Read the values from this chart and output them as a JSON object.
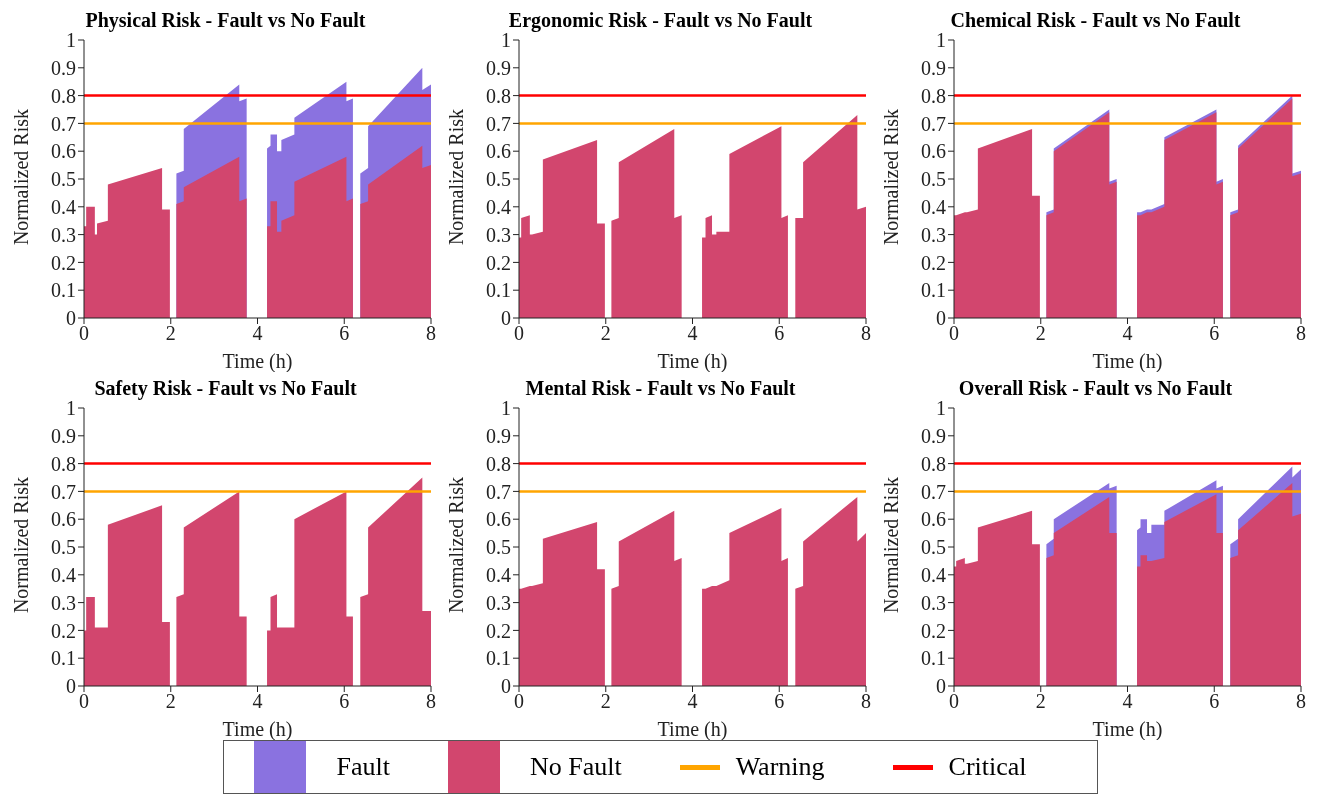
{
  "chart_data": [
    {
      "type": "area",
      "title": "Physical Risk - Fault vs No Fault",
      "xlabel": "Time (h)",
      "ylabel": "Normalized Risk",
      "xlim": [
        0,
        8
      ],
      "xticks": [
        0,
        2,
        4,
        6,
        8
      ],
      "ylim": [
        0,
        1
      ],
      "yticks": [
        0,
        0.1,
        0.2,
        0.3,
        0.4,
        0.5,
        0.6,
        0.7,
        0.8,
        0.9,
        1
      ],
      "legend": "bottom",
      "x": [
        0,
        0.05,
        0.05,
        0.25,
        0.25,
        0.3,
        0.3,
        0.55,
        0.55,
        1.8,
        1.8,
        1.98,
        1.98,
        2.13,
        2.13,
        2.3,
        2.3,
        3.58,
        3.58,
        3.75,
        3.75,
        4.22,
        4.22,
        4.3,
        4.3,
        4.45,
        4.45,
        4.55,
        4.55,
        4.85,
        4.85,
        6.05,
        6.05,
        6.2,
        6.2,
        6.37,
        6.37,
        6.55,
        6.55,
        7.8,
        7.8,
        8
      ],
      "series": [
        {
          "name": "Fault",
          "color": "#8a72e0",
          "values": [
            null,
            null,
            null,
            null,
            null,
            null,
            null,
            null,
            null,
            null,
            null,
            null,
            null,
            null,
            0.52,
            0.53,
            0.68,
            0.84,
            0.78,
            0.79,
            null,
            null,
            0.61,
            0.62,
            0.66,
            0.66,
            0.6,
            0.6,
            0.64,
            0.66,
            0.72,
            0.85,
            0.78,
            0.79,
            null,
            null,
            0.52,
            0.54,
            0.69,
            0.9,
            0.82,
            0.84
          ]
        },
        {
          "name": "No Fault",
          "color": "#d2466e",
          "values": [
            0.33,
            0.33,
            0.4,
            0.4,
            0.3,
            0.3,
            0.34,
            0.35,
            0.48,
            0.54,
            0.39,
            0.39,
            0,
            0,
            0.41,
            0.42,
            0.47,
            0.58,
            0.42,
            0.43,
            0,
            0,
            0.33,
            0.33,
            0.42,
            0.42,
            0.31,
            0.31,
            0.35,
            0.37,
            0.49,
            0.58,
            0.42,
            0.43,
            0,
            0,
            0.41,
            0.42,
            0.48,
            0.62,
            0.54,
            0.55
          ]
        }
      ],
      "ref_lines": [
        {
          "axis": "y",
          "value": 0.7,
          "label": "Warning",
          "color": "#ffa500"
        },
        {
          "axis": "y",
          "value": 0.8,
          "label": "Critical",
          "color": "#ff0000"
        }
      ]
    },
    {
      "type": "area",
      "title": "Ergonomic Risk - Fault vs No Fault",
      "xlabel": "Time (h)",
      "ylabel": "Normalized Risk",
      "xlim": [
        0,
        8
      ],
      "xticks": [
        0,
        2,
        4,
        6,
        8
      ],
      "ylim": [
        0,
        1
      ],
      "yticks": [
        0,
        0.1,
        0.2,
        0.3,
        0.4,
        0.5,
        0.6,
        0.7,
        0.8,
        0.9,
        1
      ],
      "x": [
        0,
        0.05,
        0.05,
        0.25,
        0.25,
        0.3,
        0.3,
        0.55,
        0.55,
        1.8,
        1.8,
        1.98,
        1.98,
        2.13,
        2.13,
        2.3,
        2.3,
        3.58,
        3.58,
        3.75,
        3.75,
        4.22,
        4.22,
        4.3,
        4.3,
        4.45,
        4.45,
        4.55,
        4.55,
        4.85,
        4.85,
        6.05,
        6.05,
        6.2,
        6.2,
        6.37,
        6.37,
        6.55,
        6.55,
        7.8,
        7.8,
        8
      ],
      "series": [
        {
          "color": "#d2466e",
          "values": [
            0.29,
            0.29,
            0.36,
            0.37,
            0.3,
            0.3,
            0.3,
            0.31,
            0.57,
            0.64,
            0.34,
            0.34,
            0,
            0,
            0.35,
            0.36,
            0.56,
            0.68,
            0.36,
            0.37,
            0,
            0,
            0.29,
            0.29,
            0.36,
            0.37,
            0.3,
            0.3,
            0.31,
            0.31,
            0.59,
            0.69,
            0.36,
            0.37,
            0,
            0,
            0.36,
            0.36,
            0.56,
            0.73,
            0.39,
            0.4
          ]
        }
      ],
      "ref_lines": [
        {
          "axis": "y",
          "value": 0.7,
          "color": "#ffa500"
        },
        {
          "axis": "y",
          "value": 0.8,
          "color": "#ff0000"
        }
      ]
    },
    {
      "type": "area",
      "title": "Chemical Risk - Fault vs No Fault",
      "xlabel": "Time (h)",
      "ylabel": "Normalized Risk",
      "xlim": [
        0,
        8
      ],
      "xticks": [
        0,
        2,
        4,
        6,
        8
      ],
      "ylim": [
        0,
        1
      ],
      "yticks": [
        0,
        0.1,
        0.2,
        0.3,
        0.4,
        0.5,
        0.6,
        0.7,
        0.8,
        0.9,
        1
      ],
      "x": [
        0,
        0.05,
        0.05,
        0.25,
        0.25,
        0.3,
        0.3,
        0.55,
        0.55,
        1.8,
        1.8,
        1.98,
        1.98,
        2.13,
        2.13,
        2.3,
        2.3,
        3.58,
        3.58,
        3.75,
        3.75,
        4.22,
        4.22,
        4.3,
        4.3,
        4.45,
        4.45,
        4.55,
        4.55,
        4.85,
        4.85,
        6.05,
        6.05,
        6.2,
        6.2,
        6.37,
        6.37,
        6.55,
        6.55,
        7.8,
        7.8,
        8
      ],
      "series": [
        {
          "color": "#8a72e0",
          "values": [
            null,
            null,
            null,
            null,
            null,
            null,
            null,
            null,
            null,
            null,
            null,
            null,
            null,
            null,
            0.38,
            0.39,
            0.61,
            0.75,
            0.49,
            0.5,
            null,
            null,
            0.38,
            0.38,
            0.38,
            0.39,
            0.39,
            0.39,
            0.39,
            0.41,
            0.65,
            0.75,
            0.49,
            0.5,
            null,
            null,
            0.38,
            0.39,
            0.62,
            0.8,
            0.52,
            0.53
          ]
        },
        {
          "color": "#d2466e",
          "values": [
            0.37,
            0.37,
            0.37,
            0.38,
            0.38,
            0.38,
            0.38,
            0.39,
            0.61,
            0.68,
            0.44,
            0.44,
            0,
            0,
            0.37,
            0.38,
            0.6,
            0.74,
            0.48,
            0.49,
            0,
            0,
            0.37,
            0.37,
            0.37,
            0.38,
            0.38,
            0.38,
            0.38,
            0.4,
            0.64,
            0.74,
            0.48,
            0.49,
            0,
            0,
            0.37,
            0.38,
            0.61,
            0.79,
            0.51,
            0.52
          ]
        }
      ],
      "ref_lines": [
        {
          "axis": "y",
          "value": 0.7,
          "color": "#ffa500"
        },
        {
          "axis": "y",
          "value": 0.8,
          "color": "#ff0000"
        }
      ]
    },
    {
      "type": "area",
      "title": "Safety Risk - Fault vs No Fault",
      "xlabel": "Time (h)",
      "ylabel": "Normalized Risk",
      "xlim": [
        0,
        8
      ],
      "xticks": [
        0,
        2,
        4,
        6,
        8
      ],
      "ylim": [
        0,
        1
      ],
      "yticks": [
        0,
        0.1,
        0.2,
        0.3,
        0.4,
        0.5,
        0.6,
        0.7,
        0.8,
        0.9,
        1
      ],
      "x": [
        0,
        0.05,
        0.05,
        0.25,
        0.25,
        0.3,
        0.3,
        0.55,
        0.55,
        1.8,
        1.8,
        1.98,
        1.98,
        2.13,
        2.13,
        2.3,
        2.3,
        3.58,
        3.58,
        3.75,
        3.75,
        4.22,
        4.22,
        4.3,
        4.3,
        4.45,
        4.45,
        4.55,
        4.55,
        4.85,
        4.85,
        6.05,
        6.05,
        6.2,
        6.2,
        6.37,
        6.37,
        6.55,
        6.55,
        7.8,
        7.8,
        8
      ],
      "series": [
        {
          "color": "#d2466e",
          "values": [
            0.2,
            0.2,
            0.32,
            0.32,
            0.21,
            0.21,
            0.21,
            0.21,
            0.58,
            0.65,
            0.23,
            0.23,
            0,
            0,
            0.32,
            0.33,
            0.57,
            0.7,
            0.25,
            0.25,
            0,
            0,
            0.2,
            0.2,
            0.32,
            0.33,
            0.21,
            0.21,
            0.21,
            0.21,
            0.6,
            0.7,
            0.25,
            0.25,
            0,
            0,
            0.32,
            0.33,
            0.57,
            0.75,
            0.27,
            0.27
          ]
        }
      ],
      "ref_lines": [
        {
          "axis": "y",
          "value": 0.7,
          "color": "#ffa500"
        },
        {
          "axis": "y",
          "value": 0.8,
          "color": "#ff0000"
        }
      ]
    },
    {
      "type": "area",
      "title": "Mental Risk - Fault vs No Fault",
      "xlabel": "Time (h)",
      "ylabel": "Normalized Risk",
      "xlim": [
        0,
        8
      ],
      "xticks": [
        0,
        2,
        4,
        6,
        8
      ],
      "ylim": [
        0,
        1
      ],
      "yticks": [
        0,
        0.1,
        0.2,
        0.3,
        0.4,
        0.5,
        0.6,
        0.7,
        0.8,
        0.9,
        1
      ],
      "x": [
        0,
        0.05,
        0.05,
        0.25,
        0.25,
        0.3,
        0.3,
        0.55,
        0.55,
        1.8,
        1.8,
        1.98,
        1.98,
        2.13,
        2.13,
        2.3,
        2.3,
        3.58,
        3.58,
        3.75,
        3.75,
        4.22,
        4.22,
        4.3,
        4.3,
        4.45,
        4.45,
        4.55,
        4.55,
        4.85,
        4.85,
        6.05,
        6.05,
        6.2,
        6.2,
        6.37,
        6.37,
        6.55,
        6.55,
        7.8,
        7.8,
        8
      ],
      "series": [
        {
          "color": "#d2466e",
          "values": [
            0.35,
            0.35,
            0.35,
            0.36,
            0.36,
            0.36,
            0.36,
            0.37,
            0.53,
            0.59,
            0.42,
            0.42,
            0,
            0,
            0.35,
            0.36,
            0.52,
            0.63,
            0.45,
            0.46,
            0,
            0,
            0.35,
            0.35,
            0.35,
            0.36,
            0.36,
            0.36,
            0.36,
            0.38,
            0.55,
            0.64,
            0.45,
            0.46,
            0,
            0,
            0.35,
            0.36,
            0.52,
            0.68,
            0.52,
            0.55
          ]
        }
      ],
      "ref_lines": [
        {
          "axis": "y",
          "value": 0.7,
          "color": "#ffa500"
        },
        {
          "axis": "y",
          "value": 0.8,
          "color": "#ff0000"
        }
      ]
    },
    {
      "type": "area",
      "title": "Overall Risk - Fault vs No Fault",
      "xlabel": "Time (h)",
      "ylabel": "Normalized Risk",
      "xlim": [
        0,
        8
      ],
      "xticks": [
        0,
        2,
        4,
        6,
        8
      ],
      "ylim": [
        0,
        1
      ],
      "yticks": [
        0,
        0.1,
        0.2,
        0.3,
        0.4,
        0.5,
        0.6,
        0.7,
        0.8,
        0.9,
        1
      ],
      "x": [
        0,
        0.05,
        0.05,
        0.25,
        0.25,
        0.3,
        0.3,
        0.55,
        0.55,
        1.8,
        1.8,
        1.98,
        1.98,
        2.13,
        2.13,
        2.3,
        2.3,
        3.58,
        3.58,
        3.75,
        3.75,
        4.22,
        4.22,
        4.3,
        4.3,
        4.45,
        4.45,
        4.55,
        4.55,
        4.85,
        4.85,
        6.05,
        6.05,
        6.2,
        6.2,
        6.37,
        6.37,
        6.55,
        6.55,
        7.8,
        7.8,
        8
      ],
      "series": [
        {
          "color": "#8a72e0",
          "values": [
            null,
            null,
            null,
            null,
            null,
            null,
            null,
            null,
            null,
            null,
            null,
            null,
            null,
            null,
            0.51,
            0.53,
            0.6,
            0.73,
            0.71,
            0.72,
            null,
            null,
            0.56,
            0.57,
            0.6,
            0.6,
            0.55,
            0.55,
            0.58,
            0.58,
            0.63,
            0.74,
            0.71,
            0.72,
            null,
            null,
            0.51,
            0.53,
            0.6,
            0.79,
            0.75,
            0.78
          ]
        },
        {
          "color": "#d2466e",
          "values": [
            0.43,
            0.43,
            0.45,
            0.46,
            0.44,
            0.44,
            0.44,
            0.45,
            0.57,
            0.63,
            0.51,
            0.51,
            0,
            0,
            0.46,
            0.47,
            0.55,
            0.68,
            0.55,
            0.55,
            0,
            0,
            0.43,
            0.43,
            0.47,
            0.47,
            0.45,
            0.45,
            0.45,
            0.46,
            0.59,
            0.69,
            0.55,
            0.55,
            0,
            0,
            0.46,
            0.47,
            0.56,
            0.73,
            0.61,
            0.62
          ]
        }
      ],
      "ref_lines": [
        {
          "axis": "y",
          "value": 0.7,
          "color": "#ffa500"
        },
        {
          "axis": "y",
          "value": 0.8,
          "color": "#ff0000"
        }
      ]
    }
  ]
}
